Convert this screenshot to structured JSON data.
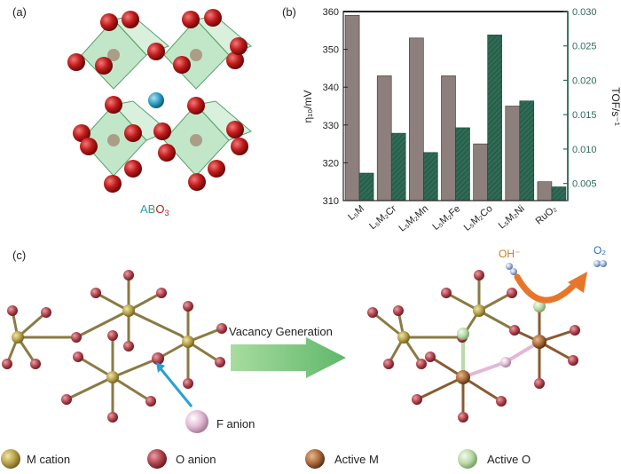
{
  "panels": {
    "a": {
      "label": "(a)",
      "formula": {
        "A": "A",
        "B": "B",
        "O": "O",
        "sub": "3"
      }
    },
    "b": {
      "label": "(b)"
    },
    "c": {
      "label": "(c)",
      "arrow_text": "Vacancy Generation",
      "f_anion": "F anion",
      "oh": "OH⁻",
      "o2": "O₂"
    }
  },
  "legend": [
    {
      "label": "M cation",
      "color": "#b5a04a"
    },
    {
      "label": "O anion",
      "color": "#b0434d"
    },
    {
      "label": "Active M",
      "color": "#a86a3c"
    },
    {
      "label": "Active O",
      "color": "#b9d9a6"
    }
  ],
  "chart_data": {
    "type": "bar",
    "categories": [
      "L₅M",
      "L₅M₂Cr",
      "L₅M₂Mn",
      "L₅M₂Fe",
      "L₅M₂Co",
      "L₅M₂Ni",
      "RuO₂"
    ],
    "series": [
      {
        "values": [
          359,
          343,
          353,
          343,
          325,
          335,
          315
        ],
        "color": "#8c7f7c"
      },
      {
        "values": [
          0.0065,
          0.0123,
          0.0095,
          0.0131,
          0.0266,
          0.017,
          0.0045
        ],
        "color": "#2f6b55"
      }
    ],
    "ylabel_left": "η₁₀/mV",
    "ylabel_right": "TOF/s⁻¹",
    "ylim_left": [
      310,
      360
    ],
    "ylim_right": [
      0.0025,
      0.03
    ],
    "yticks_left": [
      "310",
      "320",
      "330",
      "340",
      "350",
      "360"
    ],
    "yticks_right": [
      "0.005",
      "0.010",
      "0.015",
      "0.020",
      "0.025",
      "0.030"
    ],
    "right_axis_color": "#2f6b55",
    "grid": false
  }
}
